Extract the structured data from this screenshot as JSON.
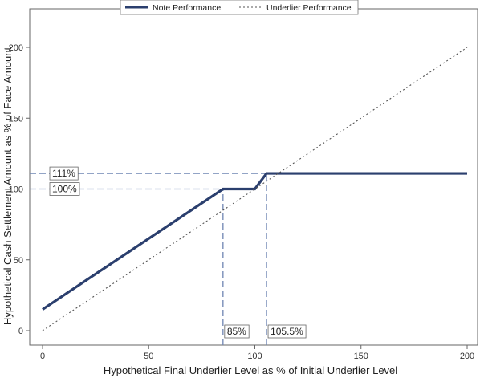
{
  "chart_data": {
    "type": "line",
    "xlabel": "Hypothetical Final Underlier Level as % of Initial Underlier Level",
    "ylabel": "Hypothetical Cash Settlement Amount as % of Face Amount",
    "xlim": [
      0,
      200
    ],
    "ylim": [
      0,
      200
    ],
    "xticks": [
      0,
      50,
      100,
      150,
      200
    ],
    "yticks": [
      0,
      50,
      100,
      150,
      200
    ],
    "grid": false,
    "legend_position": "top-center",
    "series": [
      {
        "name": "Note Performance",
        "style": "solid",
        "color": "#2b3f6e",
        "x": [
          0,
          85,
          100,
          105.5,
          200
        ],
        "y": [
          15,
          100,
          100,
          111,
          111
        ]
      },
      {
        "name": "Underlier Performance",
        "style": "dotted",
        "color": "#555555",
        "x": [
          0,
          200
        ],
        "y": [
          0,
          200
        ]
      }
    ],
    "annotations": [
      {
        "text": "111%",
        "axis": "y",
        "value": 111,
        "to_x": 105.5
      },
      {
        "text": "100%",
        "axis": "y",
        "value": 100,
        "to_x": 85
      },
      {
        "text": "85%",
        "axis": "x",
        "value": 85,
        "to_y": 100
      },
      {
        "text": "105.5%",
        "axis": "x",
        "value": 105.5,
        "to_y": 111
      }
    ],
    "reference_line_color": "#6f86b3"
  }
}
